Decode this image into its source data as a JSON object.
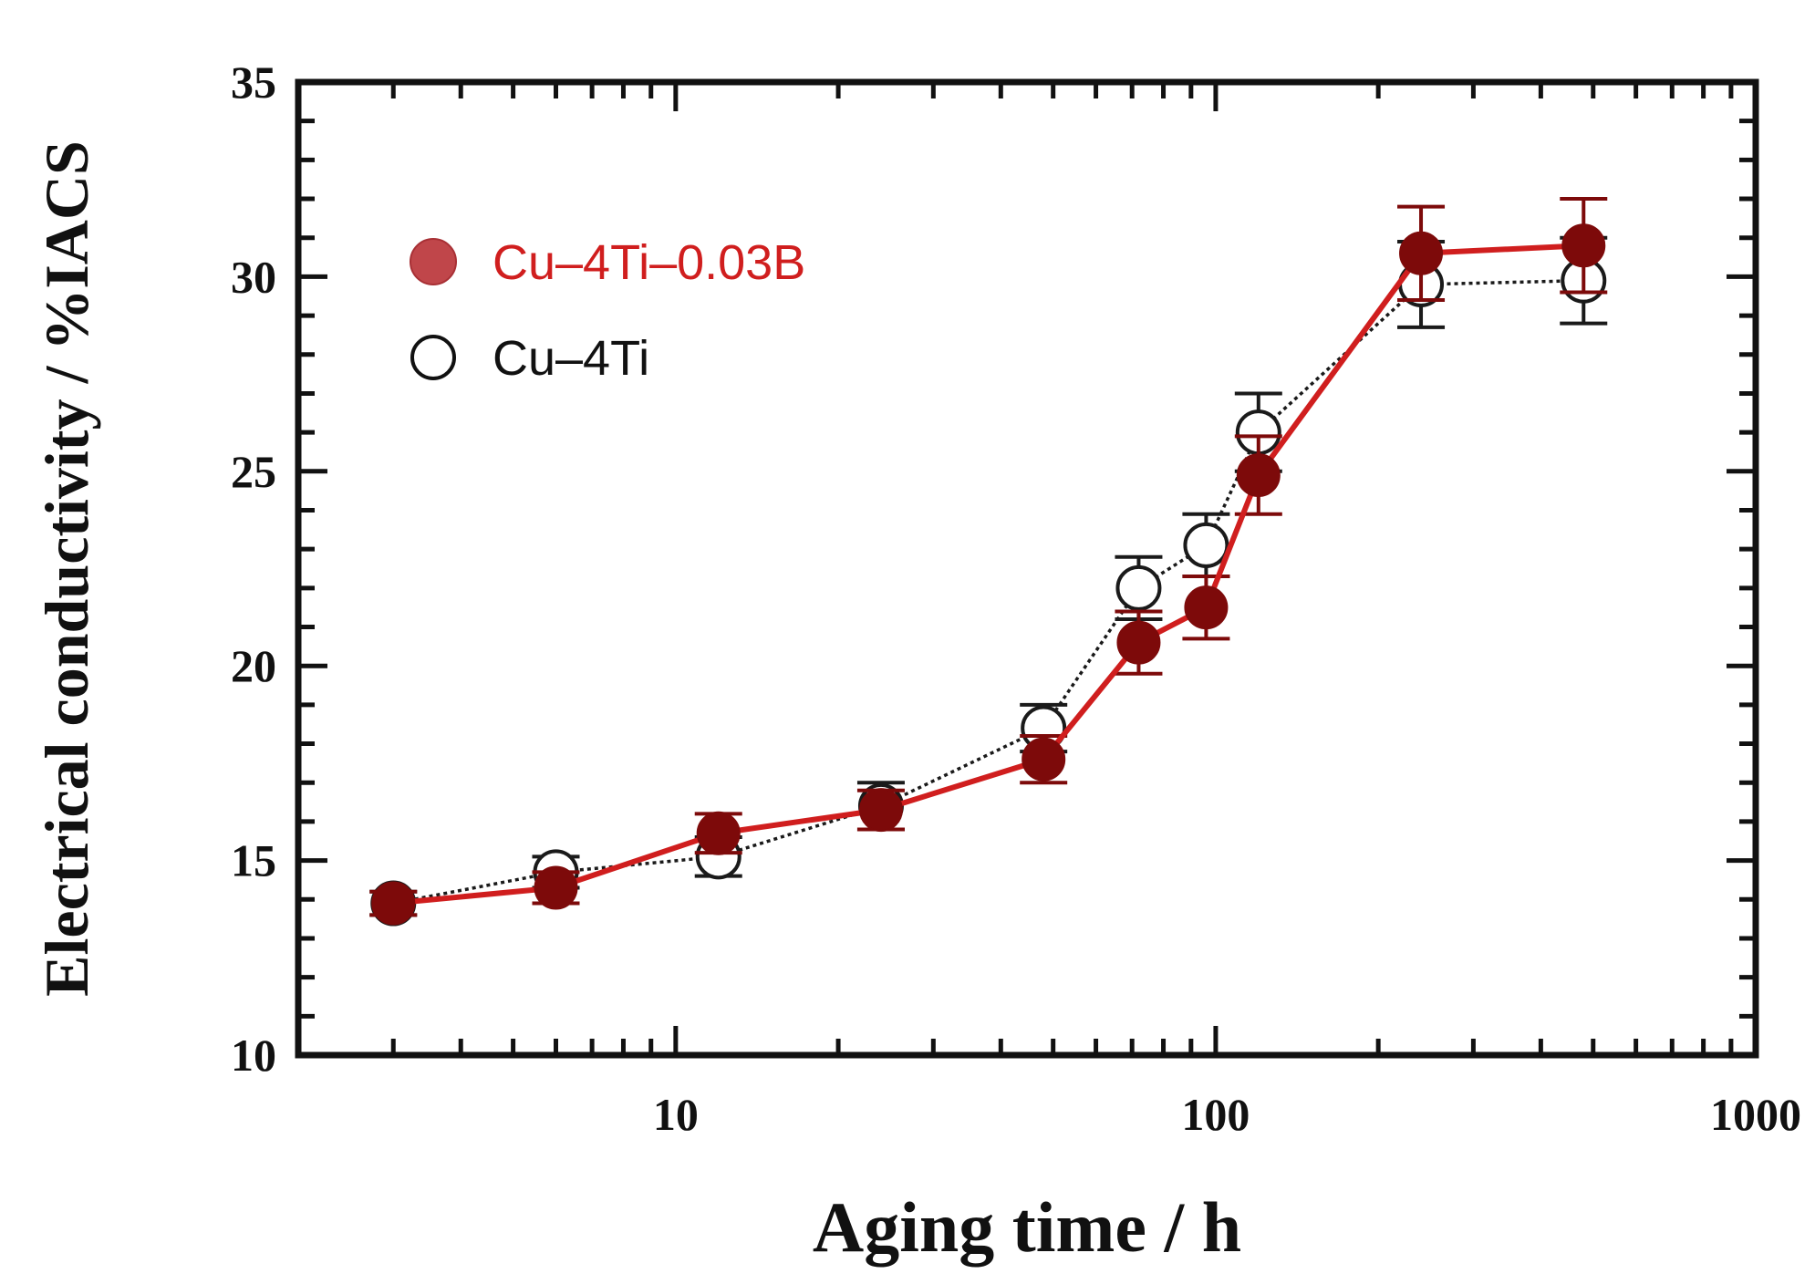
{
  "chart_data": {
    "type": "line",
    "xlabel": "Aging time / h",
    "ylabel": "Electrical conductivity / %IACS",
    "xscale": "log",
    "xlim": [
      2,
      1000
    ],
    "ylim": [
      10,
      35
    ],
    "x_tick_values": [
      10,
      100,
      1000
    ],
    "x_tick_labels": [
      "10",
      "100",
      "1000"
    ],
    "y_tick_values": [
      10,
      15,
      20,
      25,
      30,
      35
    ],
    "y_tick_labels": [
      "10",
      "15",
      "20",
      "25",
      "30",
      "35"
    ],
    "legend_position": "top-left",
    "series": [
      {
        "name": "Cu–4Ti",
        "marker": "open-circle",
        "line": "dotted",
        "color": "#1a1a1a",
        "x": [
          3,
          6,
          12,
          24,
          48,
          72,
          96,
          120,
          240,
          480
        ],
        "y": [
          13.9,
          14.7,
          15.1,
          16.4,
          18.4,
          22.0,
          23.1,
          26.0,
          29.8,
          29.9
        ],
        "err": [
          0.3,
          0.4,
          0.5,
          0.6,
          0.6,
          0.8,
          0.8,
          1.0,
          1.1,
          1.1
        ]
      },
      {
        "name": "Cu–4Ti–0.03B",
        "marker": "filled-circle",
        "line": "solid",
        "color": "#d01e1e",
        "marker_color": "#7d0a0a",
        "x": [
          3,
          6,
          12,
          24,
          48,
          72,
          96,
          120,
          240,
          480
        ],
        "y": [
          13.9,
          14.3,
          15.7,
          16.3,
          17.6,
          20.6,
          21.5,
          24.9,
          30.6,
          30.8
        ],
        "err": [
          0.3,
          0.4,
          0.5,
          0.5,
          0.6,
          0.8,
          0.8,
          1.0,
          1.2,
          1.2
        ]
      }
    ]
  }
}
